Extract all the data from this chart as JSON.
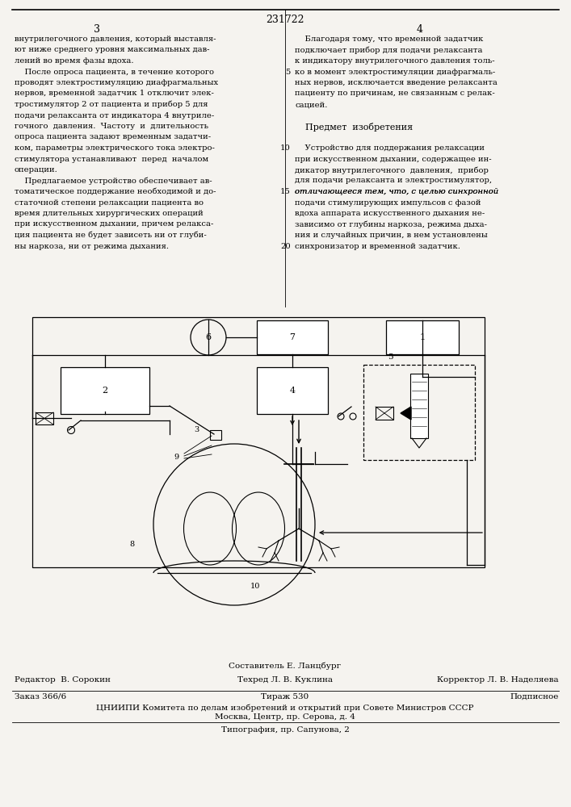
{
  "page_number_center": "231722",
  "col_left_number": "3",
  "col_right_number": "4",
  "bg_color": "#f5f3ef",
  "text_color": "#111111",
  "line_color": "#111111",
  "footer_compositor": "Составитель Е. Ланцбург",
  "footer_editor": "Редактор  В. Сорокин",
  "footer_techred": "Техред Л. В. Куклина",
  "footer_corrector": "Корректор Л. В. Наделяева",
  "footer_order": "Заказ 366/6",
  "footer_tirazh": "Тираж 530",
  "footer_podpisnoe": "Подписное",
  "footer_tsnipi": "ЦНИИПИ Комитета по делам изобретений и открытий при Совете Министров СССР",
  "footer_moscow": "Москва, Центр, пр. Серова, д. 4",
  "footer_tipografia": "Типография, пр. Сапунова, 2"
}
